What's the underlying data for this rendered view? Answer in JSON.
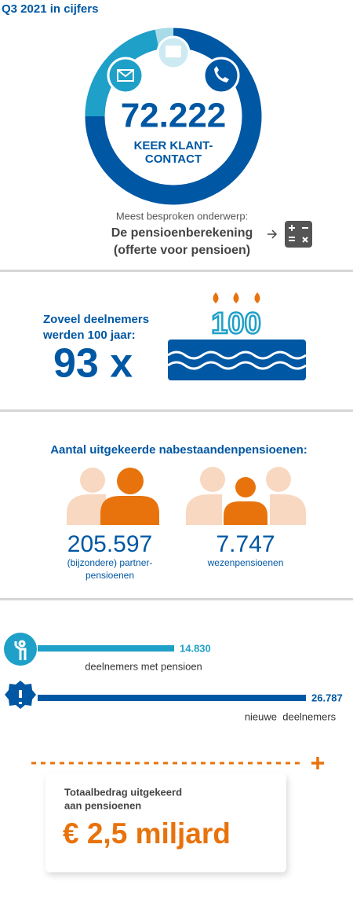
{
  "header": {
    "title": "Q3 2021 in cijfers"
  },
  "contact": {
    "number": "72.222",
    "label_lines": [
      "KEER KLANT-",
      "CONTACT"
    ],
    "topic_intro": "Meest besproken onderwerp:",
    "topic_lines": [
      "De pensioenberekening",
      "(offerte voor pensioen)"
    ]
  },
  "centenarians": {
    "label_lines": [
      "Zoveel deelnemers",
      "werden 100 jaar:"
    ],
    "count": "93 x",
    "cake_text": "100"
  },
  "survivor_pensions": {
    "title": "Aantal uitgekeerde nabestaandenpensioenen:",
    "items": [
      {
        "number": "205.597",
        "label_lines": [
          "(bijzondere) partner-",
          "pensioenen"
        ]
      },
      {
        "number": "7.747",
        "label_lines": [
          "wezenpensioenen"
        ]
      }
    ]
  },
  "participants": [
    {
      "number": "14.830",
      "label": "deelnemers met pensioen"
    },
    {
      "number": "26.787",
      "label": "nieuwe  deelnemers"
    }
  ],
  "total": {
    "label_lines": [
      "Totaalbedrag uitgekeerd",
      "aan pensioenen"
    ],
    "amount": "€ 2,5 miljard"
  }
}
